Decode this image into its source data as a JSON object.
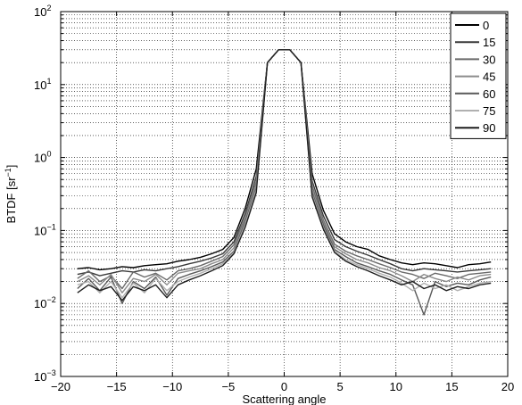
{
  "chart_data": {
    "type": "line",
    "xlabel": "Scattering angle",
    "ylabel": "BTDF [sr",
    "ylabel_sup": "−1",
    "ylabel_close": "]",
    "xlim": [
      -20,
      20
    ],
    "ylim": [
      0.001,
      100
    ],
    "y_scale": "log",
    "grid": true,
    "legend_position": "top-right",
    "x_ticks": [
      -20,
      -15,
      -10,
      -5,
      0,
      5,
      10,
      15,
      20
    ],
    "x_tick_labels": [
      "−20",
      "−15",
      "−10",
      "−5",
      "0",
      "5",
      "10",
      "15",
      "20"
    ],
    "y_ticks": [
      {
        "value": 0.001,
        "base": "10",
        "exp": "−3"
      },
      {
        "value": 0.01,
        "base": "10",
        "exp": "−2"
      },
      {
        "value": 0.1,
        "base": "10",
        "exp": "−1"
      },
      {
        "value": 1,
        "base": "10",
        "exp": "0"
      },
      {
        "value": 10,
        "base": "10",
        "exp": "1"
      },
      {
        "value": 100,
        "base": "10",
        "exp": "2"
      }
    ],
    "x": [
      -18.5,
      -17.5,
      -16.5,
      -15.5,
      -14.5,
      -13.5,
      -12.5,
      -11.5,
      -10.5,
      -9.5,
      -8.5,
      -7.5,
      -6.5,
      -5.5,
      -4.5,
      -3.5,
      -2.5,
      -1.5,
      -0.5,
      0.5,
      1.5,
      2.5,
      3.5,
      4.5,
      5.5,
      6.5,
      7.5,
      8.5,
      9.5,
      10.5,
      11.5,
      12.5,
      13.5,
      14.5,
      15.5,
      16.5,
      17.5,
      18.5
    ],
    "series": [
      {
        "name": "0",
        "color": "#000000",
        "values": [
          0.03,
          0.031,
          0.029,
          0.03,
          0.032,
          0.031,
          0.033,
          0.034,
          0.035,
          0.038,
          0.04,
          0.043,
          0.048,
          0.055,
          0.08,
          0.2,
          0.7,
          20,
          30,
          30,
          20,
          0.6,
          0.19,
          0.09,
          0.07,
          0.06,
          0.055,
          0.045,
          0.04,
          0.036,
          0.034,
          0.036,
          0.035,
          0.033,
          0.031,
          0.034,
          0.035,
          0.037
        ]
      },
      {
        "name": "15",
        "color": "#3a3a3a",
        "values": [
          0.025,
          0.027,
          0.024,
          0.026,
          0.028,
          0.027,
          0.029,
          0.028,
          0.03,
          0.032,
          0.035,
          0.038,
          0.042,
          0.048,
          0.07,
          0.17,
          0.55,
          20,
          30,
          30,
          20,
          0.48,
          0.16,
          0.075,
          0.06,
          0.052,
          0.046,
          0.04,
          0.035,
          0.03,
          0.028,
          0.03,
          0.029,
          0.028,
          0.027,
          0.028,
          0.029,
          0.03
        ]
      },
      {
        "name": "30",
        "color": "#6a6a6a",
        "values": [
          0.022,
          0.028,
          0.02,
          0.024,
          0.016,
          0.027,
          0.023,
          0.026,
          0.021,
          0.028,
          0.03,
          0.033,
          0.038,
          0.044,
          0.064,
          0.15,
          0.47,
          20,
          30,
          30,
          20,
          0.41,
          0.14,
          0.065,
          0.052,
          0.045,
          0.04,
          0.035,
          0.031,
          0.027,
          0.025,
          0.022,
          0.026,
          0.024,
          0.022,
          0.025,
          0.026,
          0.027
        ]
      },
      {
        "name": "45",
        "color": "#8c8c8c",
        "values": [
          0.02,
          0.024,
          0.018,
          0.025,
          0.014,
          0.022,
          0.02,
          0.025,
          0.018,
          0.026,
          0.028,
          0.03,
          0.035,
          0.04,
          0.058,
          0.14,
          0.42,
          20,
          30,
          30,
          20,
          0.36,
          0.13,
          0.06,
          0.048,
          0.04,
          0.036,
          0.031,
          0.028,
          0.024,
          0.02,
          0.025,
          0.022,
          0.02,
          0.023,
          0.021,
          0.024,
          0.025
        ]
      },
      {
        "name": "60",
        "color": "#5a5a5a",
        "values": [
          0.016,
          0.022,
          0.015,
          0.023,
          0.01,
          0.02,
          0.016,
          0.023,
          0.013,
          0.022,
          0.025,
          0.028,
          0.032,
          0.037,
          0.052,
          0.13,
          0.38,
          20,
          30,
          30,
          20,
          0.33,
          0.12,
          0.055,
          0.044,
          0.036,
          0.032,
          0.028,
          0.025,
          0.021,
          0.018,
          0.007,
          0.02,
          0.017,
          0.019,
          0.018,
          0.021,
          0.023
        ]
      },
      {
        "name": "75",
        "color": "#b0b0b0",
        "values": [
          0.018,
          0.02,
          0.014,
          0.02,
          0.012,
          0.019,
          0.014,
          0.022,
          0.015,
          0.02,
          0.023,
          0.026,
          0.03,
          0.035,
          0.05,
          0.12,
          0.36,
          20,
          30,
          30,
          20,
          0.31,
          0.11,
          0.052,
          0.04,
          0.034,
          0.03,
          0.026,
          0.023,
          0.019,
          0.015,
          0.019,
          0.016,
          0.018,
          0.015,
          0.017,
          0.019,
          0.02
        ]
      },
      {
        "name": "90",
        "color": "#1e1e1e",
        "values": [
          0.014,
          0.018,
          0.015,
          0.017,
          0.011,
          0.017,
          0.015,
          0.018,
          0.012,
          0.018,
          0.021,
          0.024,
          0.028,
          0.033,
          0.048,
          0.11,
          0.33,
          20,
          30,
          30,
          20,
          0.29,
          0.105,
          0.05,
          0.038,
          0.032,
          0.028,
          0.024,
          0.021,
          0.018,
          0.02,
          0.016,
          0.018,
          0.015,
          0.017,
          0.016,
          0.018,
          0.019
        ]
      }
    ]
  }
}
